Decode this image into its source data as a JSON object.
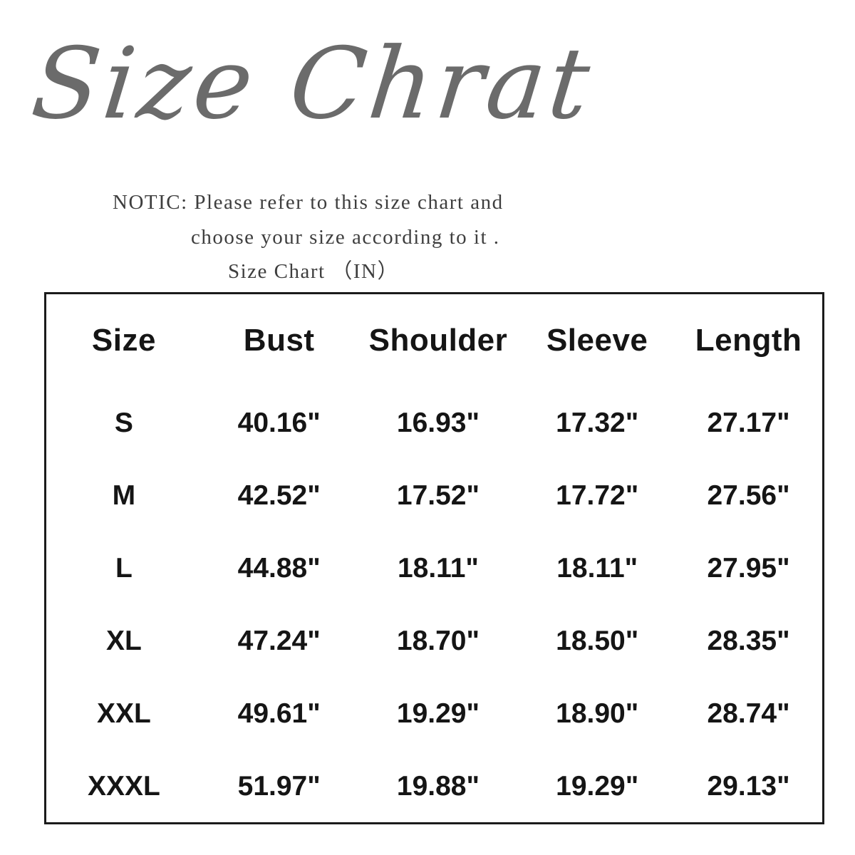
{
  "title": "Size Chrat",
  "notice": {
    "line1": "NOTIC: Please refer to this size chart and",
    "line2": "choose your size according to it .",
    "line3": "Size Chart （IN）"
  },
  "table": {
    "headers": [
      "Size",
      "Bust",
      "Shoulder",
      "Sleeve",
      "Length"
    ],
    "rows": [
      [
        "S",
        "40.16\"",
        "16.93\"",
        "17.32\"",
        "27.17\""
      ],
      [
        "M",
        "42.52\"",
        "17.52\"",
        "17.72\"",
        "27.56\""
      ],
      [
        "L",
        "44.88\"",
        "18.11\"",
        "18.11\"",
        "27.95\""
      ],
      [
        "XL",
        "47.24\"",
        "18.70\"",
        "18.50\"",
        "28.35\""
      ],
      [
        "XXL",
        "49.61\"",
        "19.29\"",
        "18.90\"",
        "28.74\""
      ],
      [
        "XXXL",
        "51.97\"",
        "19.88\"",
        "19.29\"",
        "29.13\""
      ]
    ]
  },
  "chart_data": {
    "type": "table",
    "title": "Size Chrat",
    "subtitle": "Size Chart （IN）",
    "unit": "inches",
    "columns": [
      "Size",
      "Bust",
      "Shoulder",
      "Sleeve",
      "Length"
    ],
    "rows": [
      {
        "size": "S",
        "bust": 40.16,
        "shoulder": 16.93,
        "sleeve": 17.32,
        "length": 27.17
      },
      {
        "size": "M",
        "bust": 42.52,
        "shoulder": 17.52,
        "sleeve": 17.72,
        "length": 27.56
      },
      {
        "size": "L",
        "bust": 44.88,
        "shoulder": 18.11,
        "sleeve": 18.11,
        "length": 27.95
      },
      {
        "size": "XL",
        "bust": 47.24,
        "shoulder": 18.7,
        "sleeve": 18.5,
        "length": 28.35
      },
      {
        "size": "XXL",
        "bust": 49.61,
        "shoulder": 19.29,
        "sleeve": 18.9,
        "length": 28.74
      },
      {
        "size": "XXXL",
        "bust": 51.97,
        "shoulder": 19.88,
        "sleeve": 19.29,
        "length": 29.13
      }
    ],
    "colors": {
      "title_text": "#6b6b6b",
      "body_text": "#151515",
      "table_border": "#1b1b1b",
      "background": "#ffffff"
    }
  }
}
